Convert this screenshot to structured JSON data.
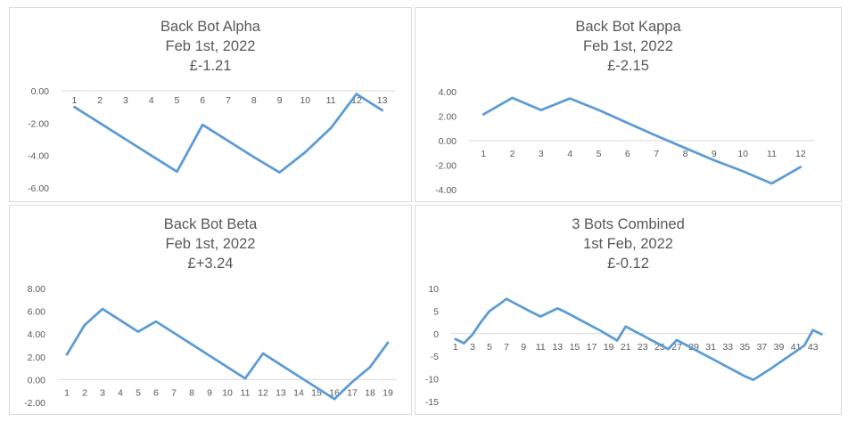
{
  "colors": {
    "series_line": "#5b9bd5",
    "axis": "#d9d9d9",
    "text": "#595959"
  },
  "chart_data": [
    {
      "type": "line",
      "title": "Back Bot Alpha",
      "subtitle": "Feb 1st, 2022",
      "total": "£-1.21",
      "x": [
        1,
        2,
        3,
        4,
        5,
        6,
        7,
        8,
        9,
        10,
        11,
        12,
        13
      ],
      "series": [
        {
          "values": [
            -1.0,
            -2.0,
            -3.0,
            -4.0,
            -5.0,
            -2.1,
            -3.1,
            -4.1,
            -5.05,
            -3.8,
            -2.3,
            -0.2,
            -1.2
          ]
        }
      ],
      "ylim": [
        -6,
        0
      ],
      "yticks": [
        "0.00",
        "-2.00",
        "-4.00",
        "-6.00"
      ],
      "xaxis_at": "top",
      "grid": false
    },
    {
      "type": "line",
      "title": "Back Bot Kappa",
      "subtitle": "Feb 1st, 2022",
      "total": "£-2.15",
      "x": [
        1,
        2,
        3,
        4,
        5,
        6,
        7,
        8,
        9,
        10,
        11,
        12
      ],
      "series": [
        {
          "values": [
            2.15,
            3.5,
            2.5,
            3.45,
            2.5,
            1.45,
            0.4,
            -0.6,
            -1.6,
            -2.5,
            -3.5,
            -2.15
          ]
        }
      ],
      "ylim": [
        -4,
        4
      ],
      "yticks": [
        "4.00",
        "2.00",
        "0.00",
        "-2.00",
        "-4.00"
      ],
      "xaxis_at": "zero",
      "grid": false
    },
    {
      "type": "line",
      "title": "Back Bot Beta",
      "subtitle": "Feb 1st, 2022",
      "total": "£+3.24",
      "x": [
        1,
        2,
        3,
        4,
        5,
        6,
        7,
        8,
        9,
        10,
        11,
        12,
        13,
        14,
        15,
        16,
        17,
        18,
        19
      ],
      "series": [
        {
          "values": [
            2.2,
            4.8,
            6.2,
            5.2,
            4.2,
            5.1,
            4.1,
            3.1,
            2.1,
            1.1,
            0.1,
            2.3,
            1.3,
            0.3,
            -0.7,
            -1.7,
            -0.2,
            1.1,
            3.24
          ]
        }
      ],
      "ylim": [
        -2,
        8
      ],
      "yticks": [
        "8.00",
        "6.00",
        "4.00",
        "2.00",
        "0.00",
        "-2.00"
      ],
      "xaxis_at": "zero",
      "grid": false
    },
    {
      "type": "line",
      "title": "3 Bots Combined",
      "subtitle": "1st Feb, 2022",
      "total": "£-0.12",
      "x": [
        1,
        2,
        3,
        4,
        5,
        6,
        7,
        8,
        9,
        10,
        11,
        12,
        13,
        14,
        15,
        16,
        17,
        18,
        19,
        20,
        21,
        22,
        23,
        24,
        25,
        26,
        27,
        28,
        29,
        30,
        31,
        32,
        33,
        34,
        35,
        36,
        37,
        38,
        39,
        40,
        41,
        42,
        43,
        44
      ],
      "x_tick_labels": [
        "1",
        "3",
        "5",
        "7",
        "9",
        "11",
        "13",
        "15",
        "17",
        "19",
        "21",
        "23",
        "25",
        "27",
        "29",
        "31",
        "33",
        "35",
        "37",
        "39",
        "41",
        "43"
      ],
      "series": [
        {
          "values": [
            -1.2,
            -2.1,
            -0.2,
            2.6,
            5.0,
            6.3,
            7.7,
            6.7,
            5.7,
            4.7,
            3.8,
            4.7,
            5.6,
            4.7,
            3.7,
            2.7,
            1.7,
            0.7,
            -0.4,
            -1.5,
            1.6,
            0.6,
            -0.4,
            -1.4,
            -2.4,
            -3.4,
            -1.4,
            -2.4,
            -3.4,
            -4.4,
            -5.4,
            -6.4,
            -7.4,
            -8.4,
            -9.4,
            -10.2,
            -9.0,
            -7.8,
            -6.5,
            -5.2,
            -3.9,
            -2.6,
            0.8,
            -0.12
          ]
        }
      ],
      "ylim": [
        -15,
        10
      ],
      "yticks": [
        "10",
        "5",
        "0",
        "-5",
        "-10",
        "-15"
      ],
      "xaxis_at": "zero",
      "grid": false
    }
  ]
}
